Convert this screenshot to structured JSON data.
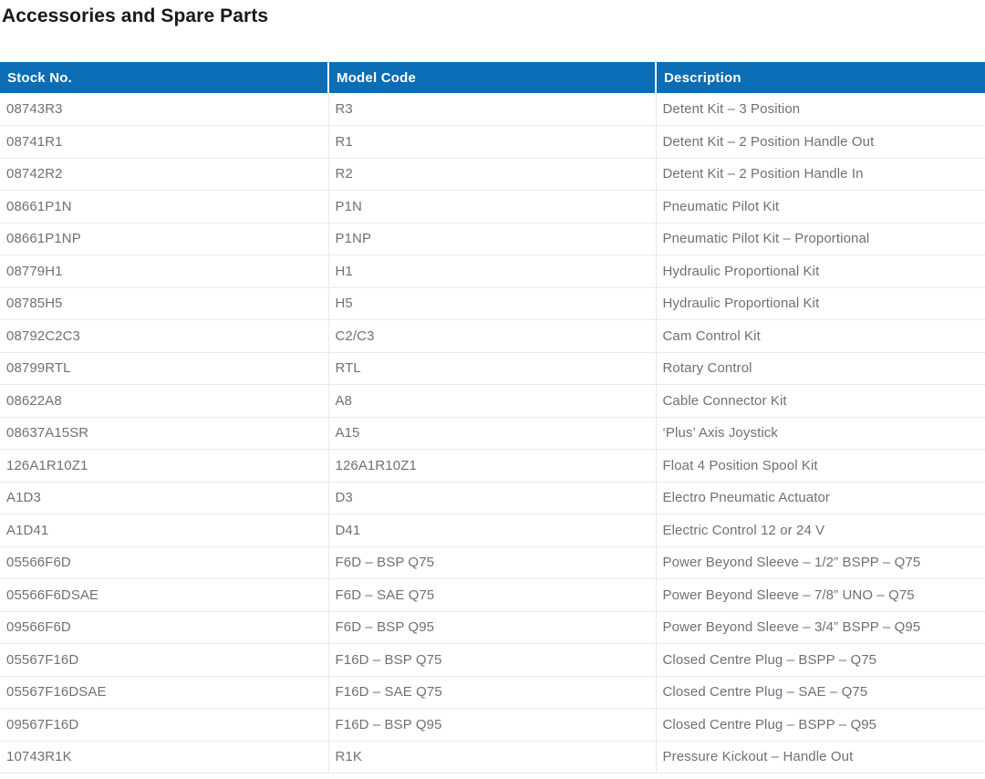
{
  "page": {
    "title": "Accessories and Spare Parts"
  },
  "colors": {
    "header_background": "#0B6DB5",
    "header_text": "#FFFFFF",
    "body_text": "#6D7177",
    "title_text": "#17191C",
    "row_border": "#E9EAEC"
  },
  "table": {
    "columns": [
      {
        "key": "stock_no",
        "label": "Stock No."
      },
      {
        "key": "model_code",
        "label": "Model Code"
      },
      {
        "key": "description",
        "label": "Description"
      }
    ],
    "rows": [
      {
        "stock_no": "08743R3",
        "model_code": "R3",
        "description": "Detent Kit – 3 Position"
      },
      {
        "stock_no": "08741R1",
        "model_code": "R1",
        "description": "Detent Kit – 2 Position Handle Out"
      },
      {
        "stock_no": "08742R2",
        "model_code": "R2",
        "description": "Detent Kit – 2 Position Handle In"
      },
      {
        "stock_no": "08661P1N",
        "model_code": "P1N",
        "description": "Pneumatic Pilot Kit"
      },
      {
        "stock_no": "08661P1NP",
        "model_code": "P1NP",
        "description": "Pneumatic Pilot Kit – Proportional"
      },
      {
        "stock_no": "08779H1",
        "model_code": "H1",
        "description": "Hydraulic Proportional Kit"
      },
      {
        "stock_no": "08785H5",
        "model_code": "H5",
        "description": "Hydraulic Proportional Kit"
      },
      {
        "stock_no": "08792C2C3",
        "model_code": "C2/C3",
        "description": "Cam Control Kit"
      },
      {
        "stock_no": "08799RTL",
        "model_code": "RTL",
        "description": "Rotary Control"
      },
      {
        "stock_no": "08622A8",
        "model_code": "A8",
        "description": "Cable Connector Kit"
      },
      {
        "stock_no": "08637A15SR",
        "model_code": "A15",
        "description": "‘Plus’ Axis Joystick"
      },
      {
        "stock_no": "126A1R10Z1",
        "model_code": "126A1R10Z1",
        "description": "Float 4 Position Spool Kit"
      },
      {
        "stock_no": "A1D3",
        "model_code": "D3",
        "description": "Electro Pneumatic Actuator"
      },
      {
        "stock_no": "A1D41",
        "model_code": "D41",
        "description": "Electric Control 12 or 24 V"
      },
      {
        "stock_no": "05566F6D",
        "model_code": "F6D – BSP Q75",
        "description": "Power Beyond Sleeve – 1/2” BSPP – Q75"
      },
      {
        "stock_no": "05566F6DSAE",
        "model_code": "F6D – SAE Q75",
        "description": "Power Beyond Sleeve – 7/8” UNO – Q75"
      },
      {
        "stock_no": "09566F6D",
        "model_code": "F6D – BSP Q95",
        "description": "Power Beyond Sleeve – 3/4” BSPP – Q95"
      },
      {
        "stock_no": "05567F16D",
        "model_code": "F16D – BSP Q75",
        "description": "Closed Centre Plug – BSPP – Q75"
      },
      {
        "stock_no": "05567F16DSAE",
        "model_code": "F16D – SAE Q75",
        "description": "Closed Centre Plug – SAE – Q75"
      },
      {
        "stock_no": "09567F16D",
        "model_code": "F16D – BSP Q95",
        "description": "Closed Centre Plug – BSPP – Q95"
      },
      {
        "stock_no": "10743R1K",
        "model_code": "R1K",
        "description": "Pressure Kickout – Handle Out"
      }
    ]
  }
}
